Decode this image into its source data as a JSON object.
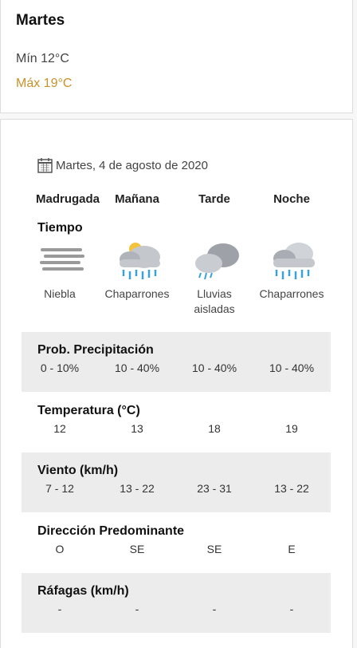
{
  "summary": {
    "day": "Martes",
    "min": "Mín 12°C",
    "max": "Máx 19°C"
  },
  "date": "Martes, 4 de agosto de 2020",
  "periods": [
    "Madrugada",
    "Mañana",
    "Tarde",
    "Noche"
  ],
  "weather": {
    "title": "Tiempo",
    "conditions": [
      "Niebla",
      "Chaparrones",
      "Lluvias aisladas",
      "Chaparrones"
    ]
  },
  "rows": [
    {
      "title": "Prob. Precipitación",
      "values": [
        "0 - 10%",
        "10 - 40%",
        "10 - 40%",
        "10 - 40%"
      ]
    },
    {
      "title": "Temperatura (°C)",
      "values": [
        12,
        13,
        18,
        19
      ]
    },
    {
      "title": "Viento (km/h)",
      "values": [
        "7 - 12",
        "13 - 22",
        "23 - 31",
        "13 - 22"
      ]
    },
    {
      "title": "Dirección Predominante",
      "values": [
        "O",
        "SE",
        "SE",
        "E"
      ]
    },
    {
      "title": "Ráfagas (km/h)",
      "values": [
        "-",
        "-",
        "-",
        "-"
      ]
    }
  ]
}
